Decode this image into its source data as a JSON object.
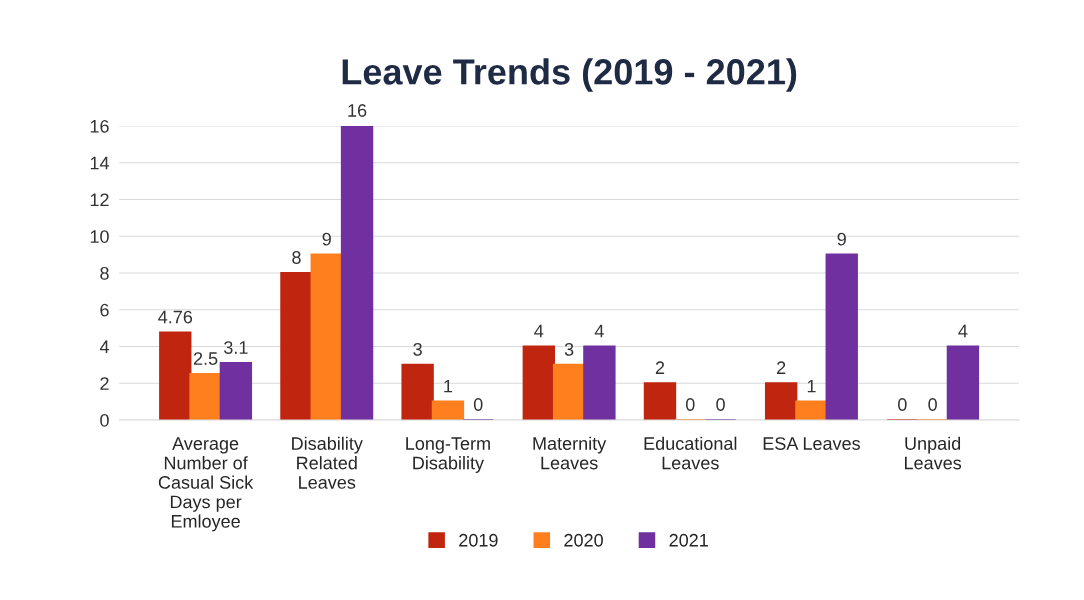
{
  "chart_data": {
    "type": "bar",
    "title": "Leave Trends (2019 - 2021)",
    "categories": [
      "Average\nNumber of\nCasual Sick\nDays per\nEmloyee",
      "Disability\nRelated\nLeaves",
      "Long-Term\nDisability",
      "Maternity\nLeaves",
      "Educational\nLeaves",
      "ESA Leaves",
      "Unpaid\nLeaves"
    ],
    "series": [
      {
        "name": "2019",
        "color": "#c0250f",
        "values": [
          4.76,
          8,
          3,
          4,
          2,
          2,
          0
        ]
      },
      {
        "name": "2020",
        "color": "#ff7f1e",
        "values": [
          2.5,
          9,
          1,
          3,
          0,
          1,
          0
        ]
      },
      {
        "name": "2021",
        "color": "#7030a0",
        "values": [
          3.1,
          16,
          0,
          4,
          0,
          9,
          4
        ]
      }
    ],
    "ylim": [
      0,
      16
    ],
    "yticks": [
      0,
      2,
      4,
      6,
      8,
      10,
      12,
      14,
      16
    ],
    "grid": "y",
    "legend": "bottom",
    "data_labels": true
  }
}
